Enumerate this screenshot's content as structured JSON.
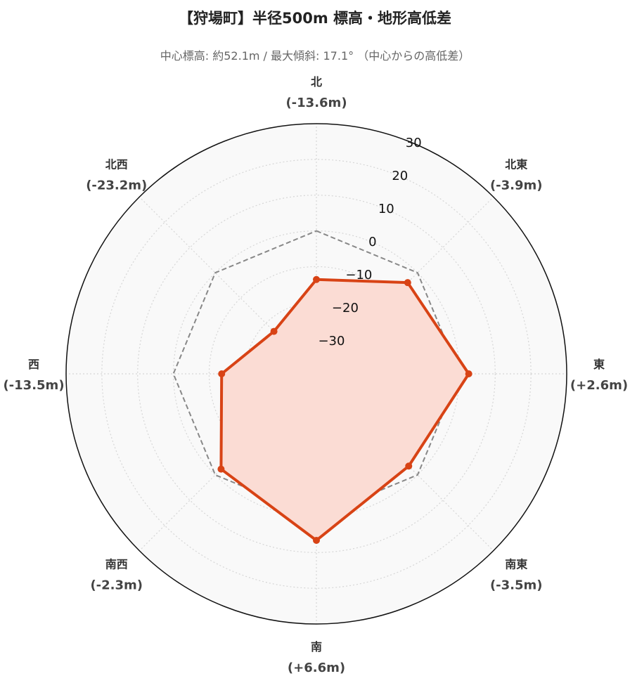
{
  "chart_data": {
    "type": "radar",
    "title": "【狩場町】半径500m 標高・地形高低差",
    "subtitle": "中心標高: 約52.1m / 最大傾斜: 17.1°  （中心からの高低差）",
    "categories": [
      {
        "name": "北",
        "value_label": "(-13.6m)"
      },
      {
        "name": "北東",
        "value_label": "(-3.9m)"
      },
      {
        "name": "東",
        "value_label": "(+2.6m)"
      },
      {
        "name": "南東",
        "value_label": "(-3.5m)"
      },
      {
        "name": "南",
        "value_label": "(+6.6m)"
      },
      {
        "name": "南西",
        "value_label": "(-2.3m)"
      },
      {
        "name": "西",
        "value_label": "(-13.5m)"
      },
      {
        "name": "北西",
        "value_label": "(-23.2m)"
      }
    ],
    "series": [
      {
        "values": [
          -13.6,
          -3.9,
          2.6,
          -3.5,
          6.6,
          -2.3,
          -13.5,
          -23.2
        ],
        "line_color": "#d84315",
        "fill_color": "#fbdcd4"
      }
    ],
    "reference": {
      "value": 0,
      "color": "#888888",
      "style": "dashed"
    },
    "radial_axis": {
      "range": [
        -40,
        30
      ],
      "ticks": [
        -30,
        -20,
        -10,
        0,
        10,
        20,
        30
      ]
    },
    "background_color": "#f9f9f9",
    "grid": true
  }
}
